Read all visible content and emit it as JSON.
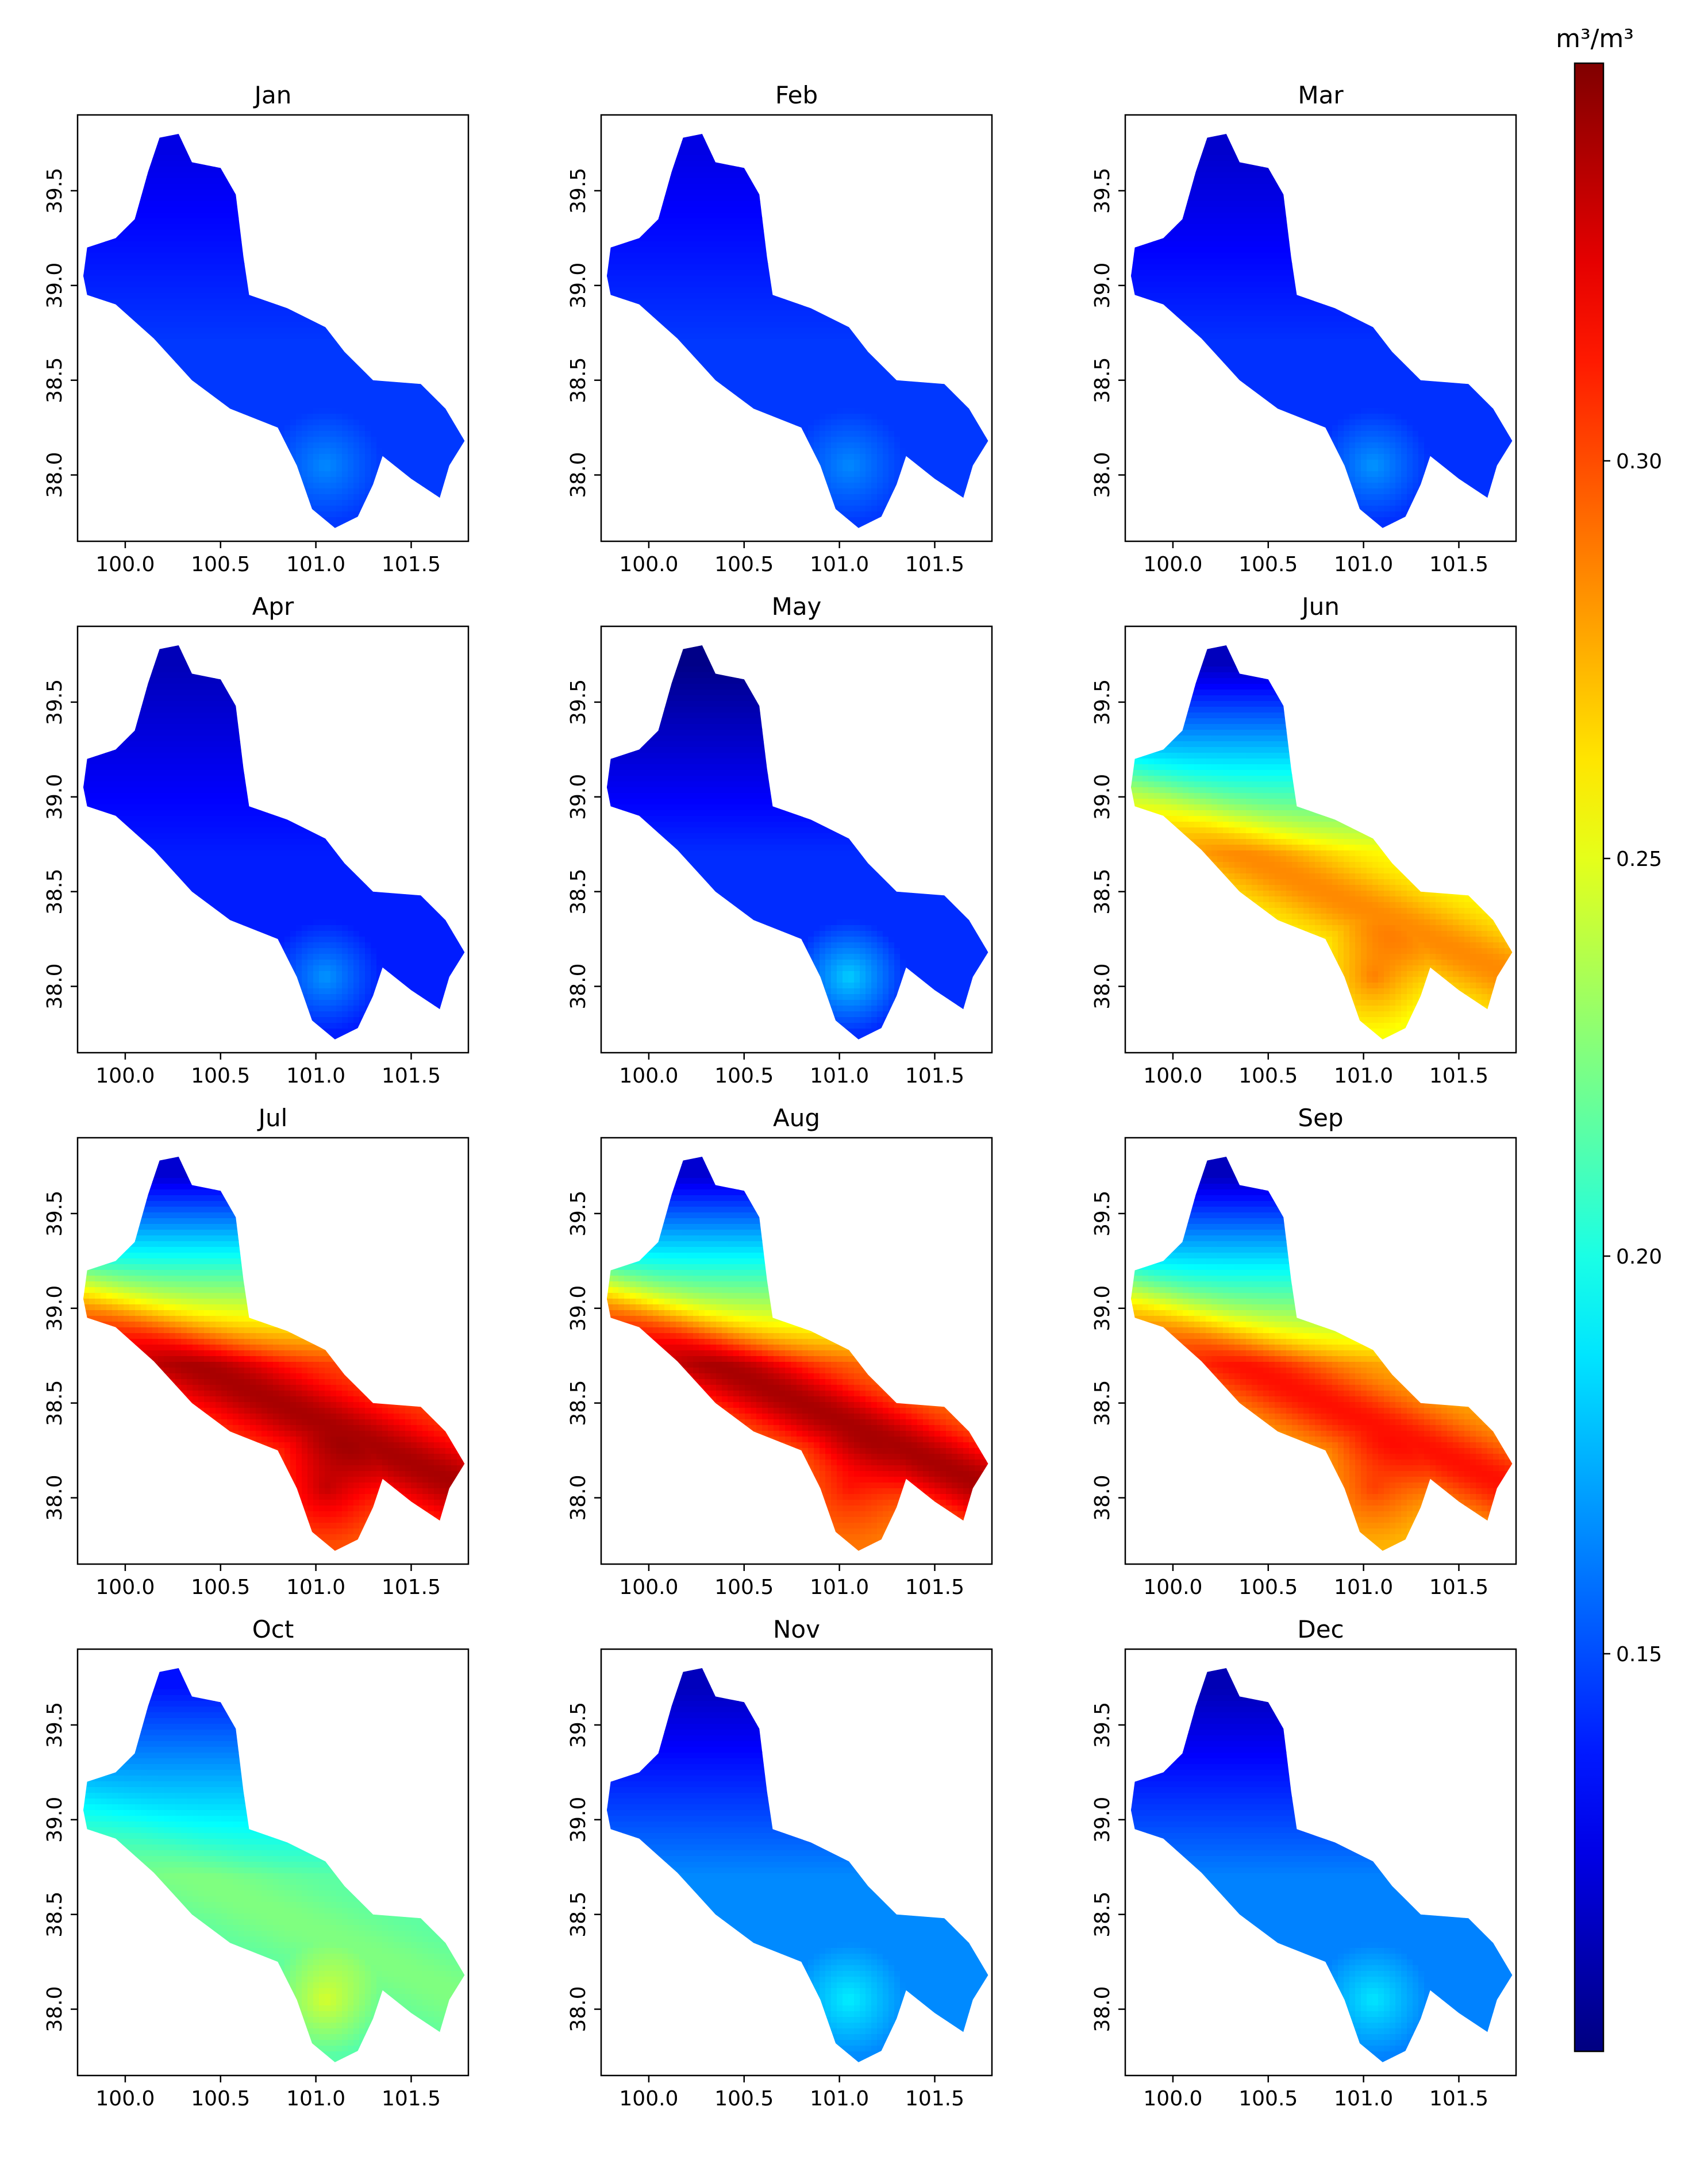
{
  "figure": {
    "colorbar_unit_label": "m³/m³"
  },
  "chart_data": [
    {
      "type": "heatmap",
      "title": "Jan",
      "x_ticks": [
        "100.0",
        "100.5",
        "101.0",
        "101.5"
      ],
      "y_ticks": [
        "38.0",
        "38.5",
        "39.0",
        "39.5"
      ],
      "xlim": [
        99.75,
        101.8
      ],
      "ylim": [
        37.65,
        39.9
      ],
      "field": {
        "base": 0.145,
        "north_bias": -0.01,
        "south_boost": 0.02,
        "river_band": 0.0
      }
    },
    {
      "type": "heatmap",
      "title": "Feb",
      "x_ticks": [
        "100.0",
        "100.5",
        "101.0",
        "101.5"
      ],
      "y_ticks": [
        "38.0",
        "38.5",
        "39.0",
        "39.5"
      ],
      "xlim": [
        99.75,
        101.8
      ],
      "ylim": [
        37.65,
        39.9
      ],
      "field": {
        "base": 0.145,
        "north_bias": -0.01,
        "south_boost": 0.02,
        "river_band": 0.0
      }
    },
    {
      "type": "heatmap",
      "title": "Mar",
      "x_ticks": [
        "100.0",
        "100.5",
        "101.0",
        "101.5"
      ],
      "y_ticks": [
        "38.0",
        "38.5",
        "39.0",
        "39.5"
      ],
      "xlim": [
        99.75,
        101.8
      ],
      "ylim": [
        37.65,
        39.9
      ],
      "field": {
        "base": 0.143,
        "north_bias": -0.012,
        "south_boost": 0.025,
        "river_band": 0.0
      }
    },
    {
      "type": "heatmap",
      "title": "Apr",
      "x_ticks": [
        "100.0",
        "100.5",
        "101.0",
        "101.5"
      ],
      "y_ticks": [
        "38.0",
        "38.5",
        "39.0",
        "39.5"
      ],
      "xlim": [
        99.75,
        101.8
      ],
      "ylim": [
        37.65,
        39.9
      ],
      "field": {
        "base": 0.138,
        "north_bias": -0.012,
        "south_boost": 0.03,
        "river_band": 0.0
      }
    },
    {
      "type": "heatmap",
      "title": "May",
      "x_ticks": [
        "100.0",
        "100.5",
        "101.0",
        "101.5"
      ],
      "y_ticks": [
        "38.0",
        "38.5",
        "39.0",
        "39.5"
      ],
      "xlim": [
        99.75,
        101.8
      ],
      "ylim": [
        37.65,
        39.9
      ],
      "field": {
        "base": 0.142,
        "north_bias": -0.02,
        "south_boost": 0.04,
        "river_band": 0.0
      }
    },
    {
      "type": "heatmap",
      "title": "Jun",
      "x_ticks": [
        "100.0",
        "100.5",
        "101.0",
        "101.5"
      ],
      "y_ticks": [
        "38.0",
        "38.5",
        "39.0",
        "39.5"
      ],
      "xlim": [
        99.75,
        101.8
      ],
      "ylim": [
        37.65,
        39.9
      ],
      "field": {
        "base": 0.255,
        "north_bias": -0.07,
        "south_boost": 0.03,
        "river_band": 0.03
      }
    },
    {
      "type": "heatmap",
      "title": "Jul",
      "x_ticks": [
        "100.0",
        "100.5",
        "101.0",
        "101.5"
      ],
      "y_ticks": [
        "38.0",
        "38.5",
        "39.0",
        "39.5"
      ],
      "xlim": [
        99.75,
        101.8
      ],
      "ylim": [
        37.65,
        39.9
      ],
      "field": {
        "base": 0.3,
        "north_bias": -0.09,
        "south_boost": 0.03,
        "river_band": 0.04
      }
    },
    {
      "type": "heatmap",
      "title": "Aug",
      "x_ticks": [
        "100.0",
        "100.5",
        "101.0",
        "101.5"
      ],
      "y_ticks": [
        "38.0",
        "38.5",
        "39.0",
        "39.5"
      ],
      "xlim": [
        99.75,
        101.8
      ],
      "ylim": [
        37.65,
        39.9
      ],
      "field": {
        "base": 0.29,
        "north_bias": -0.085,
        "south_boost": 0.02,
        "river_band": 0.05
      }
    },
    {
      "type": "heatmap",
      "title": "Sep",
      "x_ticks": [
        "100.0",
        "100.5",
        "101.0",
        "101.5"
      ],
      "y_ticks": [
        "38.0",
        "38.5",
        "39.0",
        "39.5"
      ],
      "xlim": [
        99.75,
        101.8
      ],
      "ylim": [
        37.65,
        39.9
      ],
      "field": {
        "base": 0.275,
        "north_bias": -0.08,
        "south_boost": 0.025,
        "river_band": 0.04
      }
    },
    {
      "type": "heatmap",
      "title": "Oct",
      "x_ticks": [
        "100.0",
        "100.5",
        "101.0",
        "101.5"
      ],
      "y_ticks": [
        "38.0",
        "38.5",
        "39.0",
        "39.5"
      ],
      "xlim": [
        99.75,
        101.8
      ],
      "ylim": [
        37.65,
        39.9
      ],
      "field": {
        "base": 0.215,
        "north_bias": -0.04,
        "south_boost": 0.03,
        "river_band": 0.01
      }
    },
    {
      "type": "heatmap",
      "title": "Nov",
      "x_ticks": [
        "100.0",
        "100.5",
        "101.0",
        "101.5"
      ],
      "y_ticks": [
        "38.0",
        "38.5",
        "39.0",
        "39.5"
      ],
      "xlim": [
        99.75,
        101.8
      ],
      "ylim": [
        37.65,
        39.9
      ],
      "field": {
        "base": 0.165,
        "north_bias": -0.025,
        "south_boost": 0.025,
        "river_band": 0.0
      }
    },
    {
      "type": "heatmap",
      "title": "Dec",
      "x_ticks": [
        "100.0",
        "100.5",
        "101.0",
        "101.5"
      ],
      "y_ticks": [
        "38.0",
        "38.5",
        "39.0",
        "39.5"
      ],
      "xlim": [
        99.75,
        101.8
      ],
      "ylim": [
        37.65,
        39.9
      ],
      "field": {
        "base": 0.163,
        "north_bias": -0.025,
        "south_boost": 0.025,
        "river_band": 0.0
      }
    },
    {
      "type": "colorbar",
      "colormap": "jet",
      "range": [
        0.1,
        0.35
      ],
      "ticks": [
        "0.15",
        "0.20",
        "0.25",
        "0.30"
      ],
      "tick_values": [
        0.15,
        0.2,
        0.25,
        0.3
      ],
      "label": "m³/m³"
    }
  ]
}
